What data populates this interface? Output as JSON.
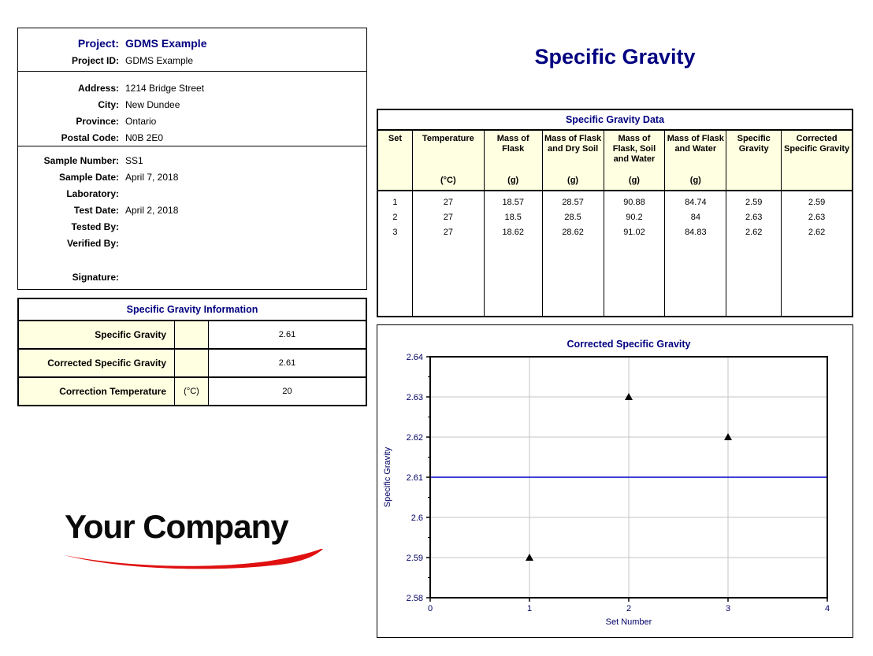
{
  "report": {
    "title": "Specific Gravity"
  },
  "colors": {
    "navy": "#000080",
    "cream": "#FFFFE1",
    "swoosh_red": "#E01010",
    "chart_text": "#000066",
    "grid": "#C6C6C6",
    "reference_line": "#0000CC",
    "marker": "#000000"
  },
  "project_box": {
    "sections": [
      {
        "rows": [
          {
            "label": "Project:",
            "value": "GDMS Example",
            "emphasis": true
          },
          {
            "label": "Project ID:",
            "value": "GDMS Example"
          }
        ]
      },
      {
        "rows": [
          {
            "label": "Address:",
            "value": "1214 Bridge Street"
          },
          {
            "label": "City:",
            "value": "New Dundee"
          },
          {
            "label": "Province:",
            "value": "Ontario"
          },
          {
            "label": "Postal Code:",
            "value": "N0B 2E0"
          }
        ]
      },
      {
        "rows": [
          {
            "label": "Sample Number:",
            "value": "SS1"
          },
          {
            "label": "Sample Date:",
            "value": "April 7, 2018"
          },
          {
            "label": "Laboratory:",
            "value": ""
          },
          {
            "label": "Test Date:",
            "value": "April 2, 2018"
          },
          {
            "label": "Tested By:",
            "value": ""
          },
          {
            "label": "Verified By:",
            "value": ""
          },
          {
            "label": "Signature:",
            "value": "",
            "gap_before": true
          }
        ]
      }
    ]
  },
  "info_table": {
    "title": "Specific Gravity Information",
    "rows": [
      {
        "label": "Specific Gravity",
        "unit": "",
        "value": "2.61"
      },
      {
        "label": "Corrected Specific Gravity",
        "unit": "",
        "value": "2.61"
      },
      {
        "label": "Correction Temperature",
        "unit": "(°C)",
        "value": "20"
      }
    ]
  },
  "logo": {
    "text": "Your Company"
  },
  "data_table": {
    "title": "Specific Gravity Data",
    "columns": [
      {
        "label": "Set",
        "unit": ""
      },
      {
        "label": "Temperature",
        "unit": "(°C)"
      },
      {
        "label": "Mass of Flask",
        "unit": "(g)"
      },
      {
        "label": "Mass of Flask and Dry Soil",
        "unit": "(g)"
      },
      {
        "label": "Mass of Flask, Soil and Water",
        "unit": "(g)"
      },
      {
        "label": "Mass of Flask and Water",
        "unit": "(g)"
      },
      {
        "label": "Specific Gravity",
        "unit": ""
      },
      {
        "label": "Corrected Specific Gravity",
        "unit": ""
      }
    ],
    "rows": [
      [
        "1",
        "27",
        "18.57",
        "28.57",
        "90.88",
        "84.74",
        "2.59",
        "2.59"
      ],
      [
        "2",
        "27",
        "18.5",
        "28.5",
        "90.2",
        "84",
        "2.63",
        "2.63"
      ],
      [
        "3",
        "27",
        "18.62",
        "28.62",
        "91.02",
        "84.83",
        "2.62",
        "2.62"
      ]
    ]
  },
  "chart_data": {
    "type": "scatter",
    "title": "Corrected Specific Gravity",
    "xlabel": "Set Number",
    "ylabel": "Specific Gravity",
    "xlim": [
      0,
      4
    ],
    "ylim": [
      2.58,
      2.64
    ],
    "x_ticks": [
      "0",
      "1",
      "2",
      "3",
      "4"
    ],
    "y_ticks": [
      "2.58",
      "2.59",
      "2.6",
      "2.61",
      "2.62",
      "2.63",
      "2.64"
    ],
    "points": [
      {
        "x": 1,
        "y": 2.59
      },
      {
        "x": 2,
        "y": 2.63
      },
      {
        "x": 3,
        "y": 2.62
      }
    ],
    "reference_line_y": 2.61,
    "marker": "triangle",
    "grid": true,
    "legend": "none"
  }
}
